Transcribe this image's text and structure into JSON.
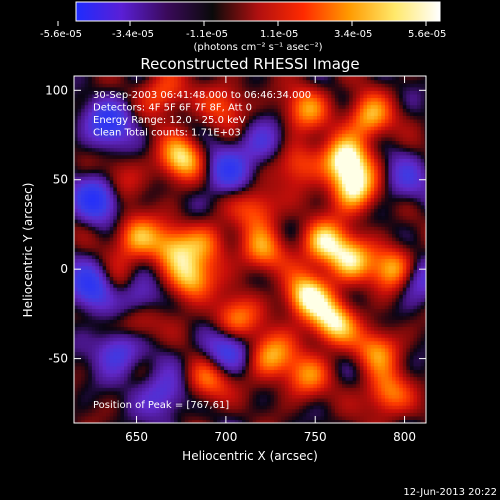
{
  "chart_data": {
    "type": "heatmap",
    "title": "Reconstructed RHESSI Image",
    "xlabel": "Heliocentric X (arcsec)",
    "ylabel": "Heliocentric Y (arcsec)",
    "xlim": [
      615,
      812
    ],
    "ylim": [
      -86,
      108
    ],
    "x_ticks": [
      650,
      700,
      750,
      800
    ],
    "y_ticks": [
      -50,
      0,
      50,
      100
    ],
    "colorbar": {
      "ticks": [
        "-5.6e-05",
        "-3.4e-05",
        "-1.1e-05",
        "1.1e-05",
        "3.4e-05",
        "5.6e-05"
      ],
      "unit_label": "(photons cm⁻² s⁻¹ asec⁻²)",
      "colors": [
        "#1e2cff",
        "#5a1fd6",
        "#3a0a5a",
        "#0a0a0a",
        "#b01010",
        "#ff2a00",
        "#ff9a00",
        "#ffe86a",
        "#ffffff"
      ]
    },
    "annotations": [
      "30-Sep-2003 06:41:48.000 to 06:46:34.000",
      "Detectors: 4F 5F 6F 7F 8F, Att 0",
      "Energy Range: 12.0 - 25.0 keV",
      "Clean     Total counts: 1.71E+03"
    ],
    "peak_label": "Position of Peak = [767,61]",
    "peak": [
      767,
      61
    ],
    "hot_spots": [
      {
        "x": 767,
        "y": 61,
        "v": 1.0
      },
      {
        "x": 772,
        "y": 45,
        "v": 0.9
      },
      {
        "x": 780,
        "y": 85,
        "v": 0.75
      },
      {
        "x": 745,
        "y": 90,
        "v": 0.6
      },
      {
        "x": 700,
        "y": 92,
        "v": 0.45
      },
      {
        "x": 665,
        "y": 98,
        "v": 0.55
      },
      {
        "x": 675,
        "y": 62,
        "v": 0.85
      },
      {
        "x": 718,
        "y": 35,
        "v": 0.55
      },
      {
        "x": 650,
        "y": 18,
        "v": 0.7
      },
      {
        "x": 670,
        "y": 12,
        "v": 0.65
      },
      {
        "x": 690,
        "y": 15,
        "v": 0.5
      },
      {
        "x": 640,
        "y": -10,
        "v": 0.45
      },
      {
        "x": 680,
        "y": -5,
        "v": 0.8
      },
      {
        "x": 720,
        "y": 10,
        "v": 0.6
      },
      {
        "x": 755,
        "y": 15,
        "v": 0.85
      },
      {
        "x": 770,
        "y": 5,
        "v": 0.75
      },
      {
        "x": 795,
        "y": 0,
        "v": 0.9
      },
      {
        "x": 745,
        "y": -15,
        "v": 0.95
      },
      {
        "x": 760,
        "y": -30,
        "v": 0.9
      },
      {
        "x": 705,
        "y": -28,
        "v": 0.65
      },
      {
        "x": 650,
        "y": -30,
        "v": 0.5
      },
      {
        "x": 785,
        "y": -45,
        "v": 0.6
      },
      {
        "x": 725,
        "y": -48,
        "v": 0.7
      },
      {
        "x": 745,
        "y": -60,
        "v": 0.55
      },
      {
        "x": 690,
        "y": -62,
        "v": 0.6
      },
      {
        "x": 790,
        "y": -70,
        "v": 0.65
      },
      {
        "x": 640,
        "y": 50,
        "v": 0.35
      },
      {
        "x": 740,
        "y": 60,
        "v": 0.5
      }
    ],
    "cold_spots": [
      {
        "x": 635,
        "y": 82,
        "v": 0.75
      },
      {
        "x": 628,
        "y": 40,
        "v": 0.85
      },
      {
        "x": 700,
        "y": 55,
        "v": 0.6
      },
      {
        "x": 625,
        "y": -10,
        "v": 0.8
      },
      {
        "x": 650,
        "y": -15,
        "v": 0.7
      },
      {
        "x": 640,
        "y": -45,
        "v": 0.65
      },
      {
        "x": 665,
        "y": -70,
        "v": 0.55
      },
      {
        "x": 700,
        "y": -45,
        "v": 0.7
      },
      {
        "x": 805,
        "y": -5,
        "v": 0.6
      },
      {
        "x": 800,
        "y": 50,
        "v": 0.4
      },
      {
        "x": 720,
        "y": 70,
        "v": 0.45
      }
    ]
  },
  "timestamp": "12-Jun-2013 20:22"
}
